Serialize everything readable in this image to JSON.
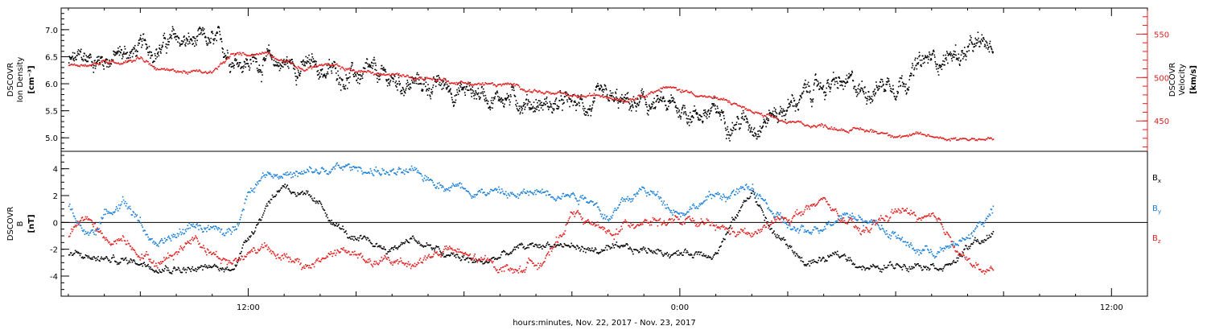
{
  "chart_data": [
    {
      "type": "scatter",
      "panel": "top",
      "left_axis_label_lines": [
        "DSCOVR",
        "Ion Density",
        "[cm⁻³]"
      ],
      "right_axis_label_lines": [
        "DSCOVR",
        "Velocity",
        "[km/s]"
      ],
      "ylim_left": [
        4.75,
        7.4
      ],
      "yticks_left": [
        "5.0",
        "5.5",
        "6.0",
        "6.5",
        "7.0"
      ],
      "ylim_right": [
        415,
        580
      ],
      "yticks_right": [
        "450",
        "500",
        "550"
      ],
      "right_axis_color": "#e02020",
      "series": [
        {
          "name": "Ion Density",
          "axis": "left",
          "color": "#000000",
          "knots": [
            [
              7.0,
              6.4
            ],
            [
              8.5,
              6.55
            ],
            [
              10.0,
              6.8
            ],
            [
              11.0,
              6.7
            ],
            [
              12.0,
              6.45
            ],
            [
              13.5,
              6.35
            ],
            [
              14.5,
              6.2
            ],
            [
              16.0,
              6.05
            ],
            [
              17.5,
              5.95
            ],
            [
              19.0,
              5.8
            ],
            [
              20.5,
              5.6
            ],
            [
              22.0,
              5.6
            ],
            [
              23.0,
              5.6
            ],
            [
              24.5,
              5.5
            ],
            [
              26.0,
              5.3
            ],
            [
              27.0,
              5.6
            ],
            [
              28.0,
              6.0
            ],
            [
              29.0,
              5.9
            ],
            [
              30.0,
              6.1
            ],
            [
              31.0,
              6.45
            ],
            [
              32.0,
              6.6
            ],
            [
              32.7,
              6.7
            ]
          ],
          "noise": 0.28
        },
        {
          "name": "Velocity",
          "axis": "right",
          "color": "#e02020",
          "knots": [
            [
              7.0,
              515
            ],
            [
              8.5,
              520
            ],
            [
              9.0,
              525
            ],
            [
              9.5,
              510
            ],
            [
              11.0,
              505
            ],
            [
              11.5,
              525
            ],
            [
              12.5,
              530
            ],
            [
              13.0,
              522
            ],
            [
              13.5,
              510
            ],
            [
              14.0,
              515
            ],
            [
              15.5,
              505
            ],
            [
              17.0,
              500
            ],
            [
              18.0,
              495
            ],
            [
              19.5,
              490
            ],
            [
              21.0,
              477
            ],
            [
              22.0,
              480
            ],
            [
              22.5,
              477
            ],
            [
              23.5,
              490
            ],
            [
              24.5,
              482
            ],
            [
              25.5,
              470
            ],
            [
              26.3,
              455
            ],
            [
              27.0,
              448
            ],
            [
              28.0,
              445
            ],
            [
              29.0,
              440
            ],
            [
              31.0,
              432
            ],
            [
              32.7,
              430
            ]
          ],
          "noise": 4
        }
      ]
    },
    {
      "type": "scatter",
      "panel": "bottom",
      "left_axis_label_lines": [
        "DSCOVR",
        "B",
        "[nT]"
      ],
      "ylim": [
        -5.5,
        5.3
      ],
      "yticks": [
        "-4",
        "-2",
        "0",
        "2",
        "4"
      ],
      "zero_line": true,
      "x_tick_labels": [
        "12:00",
        "0:00",
        "12:00"
      ],
      "x_tick_hours": [
        12,
        24,
        36
      ],
      "xlim_hours": [
        6.8,
        37.0
      ],
      "xlabel": "hours:minutes, Nov. 22, 2017 - Nov. 23, 2017",
      "legend": [
        {
          "name": "B",
          "sub": "x",
          "color": "#000000"
        },
        {
          "name": "B",
          "sub": "y",
          "color": "#1a7fd6"
        },
        {
          "name": "B",
          "sub": "z",
          "color": "#e02020"
        }
      ],
      "series": [
        {
          "name": "Bx",
          "color": "#000000",
          "knots": [
            [
              7.0,
              -2.5
            ],
            [
              8.0,
              -2.7
            ],
            [
              9.5,
              -3.0
            ],
            [
              10.5,
              -3.4
            ],
            [
              11.5,
              -3.5
            ],
            [
              12.0,
              -1.0
            ],
            [
              12.5,
              1.5
            ],
            [
              13.0,
              3.0
            ],
            [
              14.0,
              1.0
            ],
            [
              15.0,
              -1.5
            ],
            [
              16.0,
              -2.0
            ],
            [
              16.5,
              -1.0
            ],
            [
              17.5,
              -2.5
            ],
            [
              18.5,
              -3.0
            ],
            [
              19.5,
              -2.0
            ],
            [
              20.5,
              -1.5
            ],
            [
              21.5,
              -2.0
            ],
            [
              22.5,
              -2.2
            ],
            [
              23.5,
              -2.0
            ],
            [
              24.0,
              -2.3
            ],
            [
              25.0,
              -2.0
            ],
            [
              26.0,
              2.5
            ],
            [
              26.5,
              -0.5
            ],
            [
              27.5,
              -3.0
            ],
            [
              28.5,
              -2.5
            ],
            [
              29.5,
              -3.5
            ],
            [
              30.5,
              -2.8
            ],
            [
              31.5,
              -3.0
            ],
            [
              32.2,
              -1.5
            ],
            [
              32.7,
              -1.0
            ]
          ],
          "noise": 0.5
        },
        {
          "name": "By",
          "color": "#1a7fd6",
          "knots": [
            [
              7.0,
              1.5
            ],
            [
              7.5,
              -1.0
            ],
            [
              8.5,
              2.0
            ],
            [
              9.5,
              -2.0
            ],
            [
              10.5,
              0.0
            ],
            [
              11.5,
              -1.0
            ],
            [
              12.0,
              2.5
            ],
            [
              12.5,
              4.0
            ],
            [
              13.5,
              3.5
            ],
            [
              14.5,
              4.0
            ],
            [
              15.5,
              4.0
            ],
            [
              16.5,
              3.5
            ],
            [
              17.5,
              3.0
            ],
            [
              18.5,
              2.5
            ],
            [
              19.5,
              2.0
            ],
            [
              20.5,
              2.5
            ],
            [
              21.5,
              2.0
            ],
            [
              22.0,
              0.5
            ],
            [
              23.0,
              2.5
            ],
            [
              24.0,
              1.0
            ],
            [
              25.0,
              2.0
            ],
            [
              26.0,
              2.5
            ],
            [
              26.8,
              0.0
            ],
            [
              27.5,
              -1.0
            ],
            [
              28.5,
              1.0
            ],
            [
              29.5,
              0.0
            ],
            [
              30.5,
              -2.0
            ],
            [
              31.5,
              -2.0
            ],
            [
              32.0,
              -1.0
            ],
            [
              32.7,
              1.0
            ]
          ],
          "noise": 0.6
        },
        {
          "name": "Bz",
          "color": "#e02020",
          "knots": [
            [
              7.0,
              -1.0
            ],
            [
              7.5,
              0.5
            ],
            [
              8.0,
              -1.5
            ],
            [
              8.5,
              -1.0
            ],
            [
              9.5,
              -3.0
            ],
            [
              10.5,
              -1.0
            ],
            [
              11.5,
              -3.0
            ],
            [
              12.5,
              -1.5
            ],
            [
              13.5,
              -3.5
            ],
            [
              14.5,
              -2.0
            ],
            [
              15.5,
              -3.0
            ],
            [
              16.5,
              -3.0
            ],
            [
              17.5,
              -2.0
            ],
            [
              18.5,
              -3.0
            ],
            [
              19.5,
              -3.5
            ],
            [
              20.5,
              -2.0
            ],
            [
              21.0,
              1.0
            ],
            [
              22.0,
              -1.0
            ],
            [
              23.0,
              0.5
            ],
            [
              24.0,
              0.0
            ],
            [
              25.0,
              -0.5
            ],
            [
              26.0,
              -1.0
            ],
            [
              27.0,
              0.5
            ],
            [
              28.0,
              1.5
            ],
            [
              29.0,
              -1.0
            ],
            [
              30.0,
              1.0
            ],
            [
              31.0,
              0.0
            ],
            [
              31.8,
              -2.0
            ],
            [
              32.3,
              -3.5
            ],
            [
              32.7,
              -3.8
            ]
          ],
          "noise": 0.6
        }
      ]
    }
  ]
}
